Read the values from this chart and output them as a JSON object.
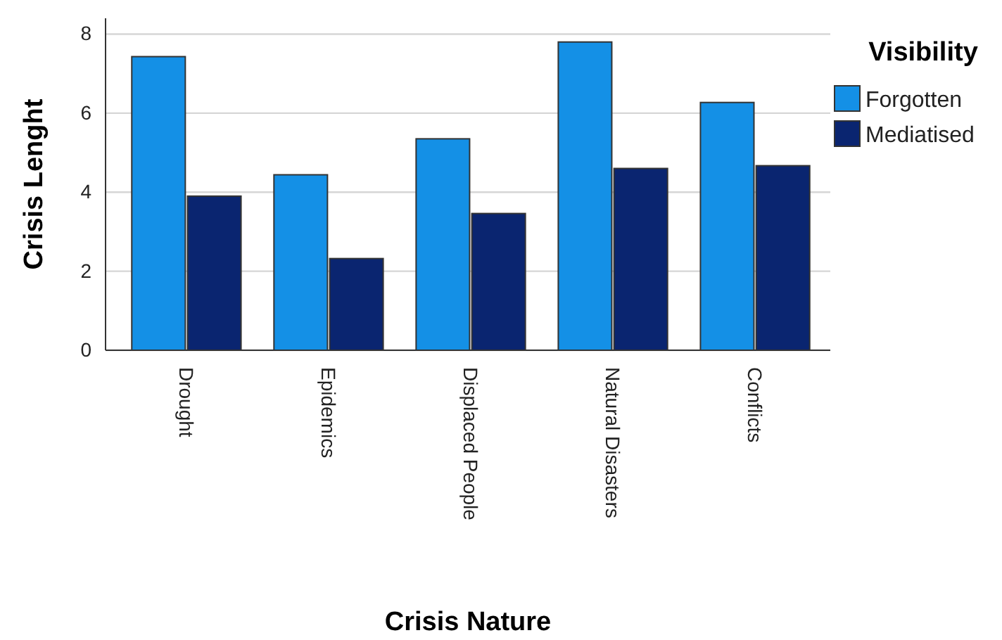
{
  "chart_data": {
    "type": "bar",
    "xlabel": "Crisis Nature",
    "ylabel": "Crisis Lenght",
    "legend_title": "Visibility",
    "categories": [
      "Drought",
      "Epidemics",
      "Displaced People",
      "Natural Disasters",
      "Conflicts"
    ],
    "series": [
      {
        "name": "Forgotten",
        "color": "#1490e6",
        "values": [
          7.43,
          4.44,
          5.35,
          7.8,
          6.27
        ]
      },
      {
        "name": "Mediatised",
        "color": "#0a2570",
        "values": [
          3.9,
          2.32,
          3.46,
          4.6,
          4.67
        ]
      }
    ],
    "ylim": [
      0,
      8.4
    ],
    "yticks": [
      0,
      2,
      4,
      6,
      8
    ],
    "grid": "y",
    "legend": "top right"
  }
}
